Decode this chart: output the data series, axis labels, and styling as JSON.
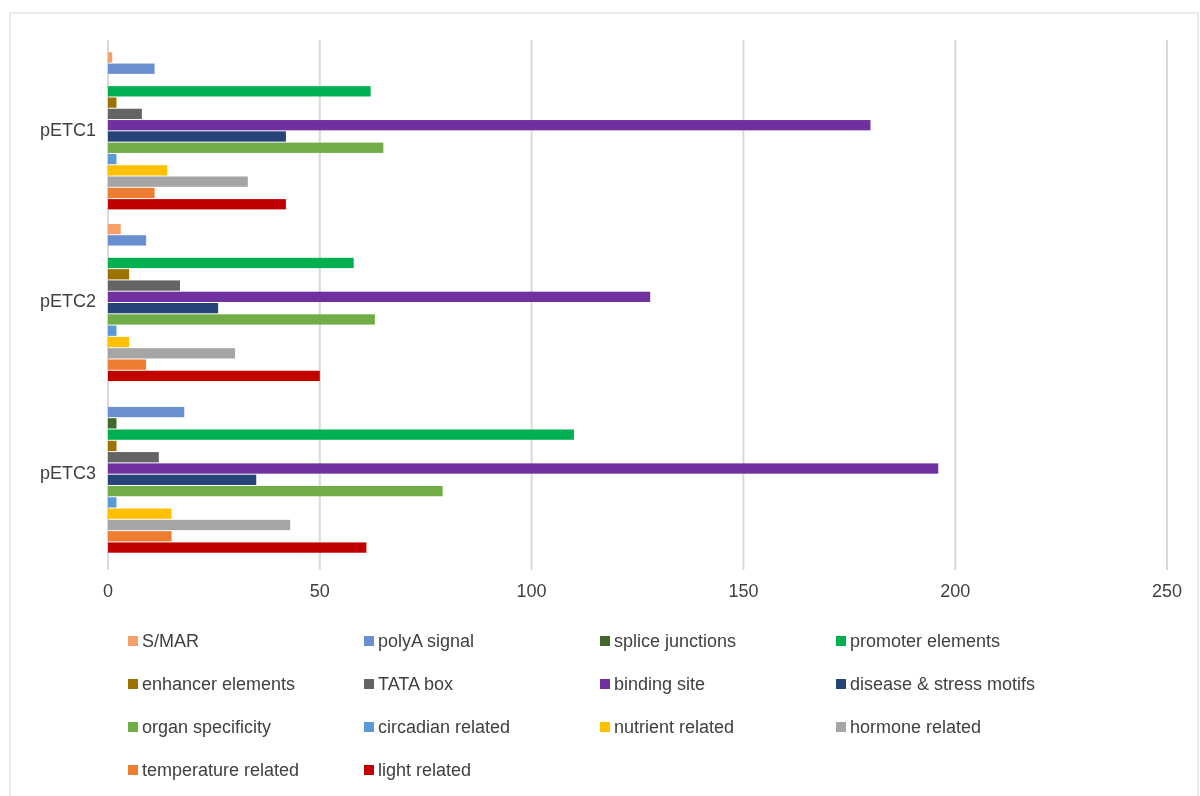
{
  "chart_data": {
    "type": "bar",
    "orientation": "horizontal",
    "categories": [
      "pETC1",
      "pETC2",
      "pETC3"
    ],
    "series": [
      {
        "name": "S/MAR",
        "color": "#f4a068",
        "values": [
          1,
          3,
          0
        ]
      },
      {
        "name": "polyA signal",
        "color": "#6a8fd0",
        "values": [
          11,
          9,
          18
        ]
      },
      {
        "name": "splice junctions",
        "color": "#43682b",
        "values": [
          0,
          0,
          2
        ]
      },
      {
        "name": "promoter elements",
        "color": "#00b050",
        "values": [
          62,
          58,
          110
        ]
      },
      {
        "name": "enhancer elements",
        "color": "#9c7200",
        "values": [
          2,
          5,
          2
        ]
      },
      {
        "name": "TATA box",
        "color": "#646464",
        "values": [
          8,
          17,
          12
        ]
      },
      {
        "name": "binding site",
        "color": "#7030a0",
        "values": [
          180,
          128,
          196
        ]
      },
      {
        "name": "disease & stress motifs",
        "color": "#264478",
        "values": [
          42,
          26,
          35
        ]
      },
      {
        "name": "organ specificity",
        "color": "#70ad47",
        "values": [
          65,
          63,
          79
        ]
      },
      {
        "name": "circadian related",
        "color": "#5b9bd5",
        "values": [
          2,
          2,
          2
        ]
      },
      {
        "name": "nutrient related",
        "color": "#ffc000",
        "values": [
          14,
          5,
          15
        ]
      },
      {
        "name": "hormone related",
        "color": "#a5a5a5",
        "values": [
          33,
          30,
          43
        ]
      },
      {
        "name": "temperature related",
        "color": "#ed7d31",
        "values": [
          11,
          9,
          15
        ]
      },
      {
        "name": "light related",
        "color": "#c00000",
        "values": [
          42,
          50,
          61
        ]
      }
    ],
    "xlim": [
      0,
      250
    ],
    "xticks": [
      0,
      50,
      100,
      150,
      200,
      250
    ],
    "grid": "x",
    "legend": "bottom"
  }
}
